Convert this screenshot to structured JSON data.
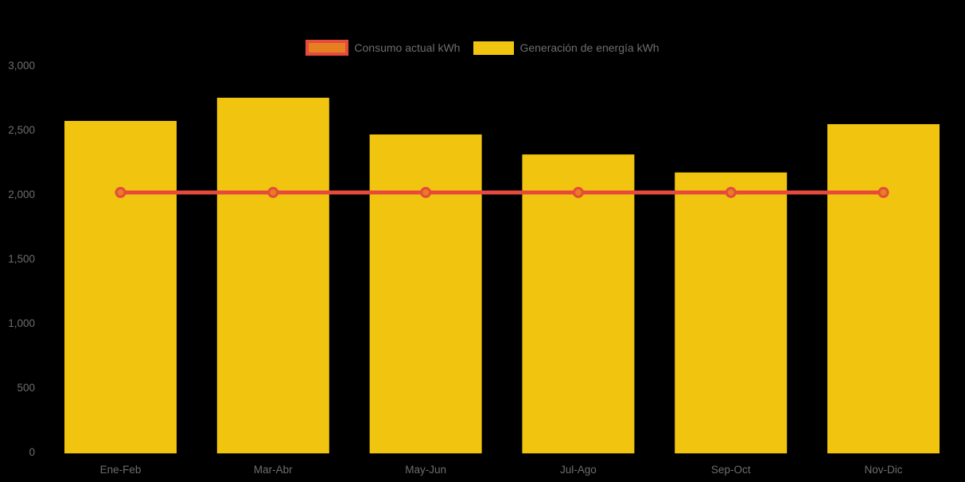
{
  "legend": {
    "items": [
      {
        "label": "Consumo actual kWh",
        "swatch_fill": "#e67e22",
        "swatch_border": "#e64a3d"
      },
      {
        "label": "Generación de energía kWh",
        "swatch_fill": "#f1c40f",
        "swatch_border": ""
      }
    ]
  },
  "chart_data": {
    "type": "bar",
    "title": "",
    "xlabel": "",
    "ylabel": "",
    "categories": [
      "Ene-Feb",
      "Mar-Abr",
      "May-Jun",
      "Jul-Ago",
      "Sep-Oct",
      "Nov-Dic"
    ],
    "series": [
      {
        "name": "Consumo actual kWh",
        "type": "line",
        "values": [
          2025,
          2025,
          2025,
          2025,
          2025,
          2025
        ],
        "line_color": "#e64a3d",
        "marker_fill": "#e67e22",
        "marker_border": "#e64a3d"
      },
      {
        "name": "Generación de energía kWh",
        "type": "bar",
        "values": [
          2580,
          2760,
          2475,
          2320,
          2180,
          2555
        ],
        "bar_color": "#f1c40f"
      }
    ],
    "ylim": [
      0,
      3000
    ],
    "yticks": [
      0,
      500,
      1000,
      1500,
      2000,
      2500,
      3000
    ],
    "ytick_labels": [
      "0",
      "500",
      "1,000",
      "1,500",
      "2,000",
      "2,500",
      "3,000"
    ],
    "grid": false,
    "legend_position": "top-center",
    "background_color": "#000000",
    "axis_text_color": "#6e6e6e"
  }
}
